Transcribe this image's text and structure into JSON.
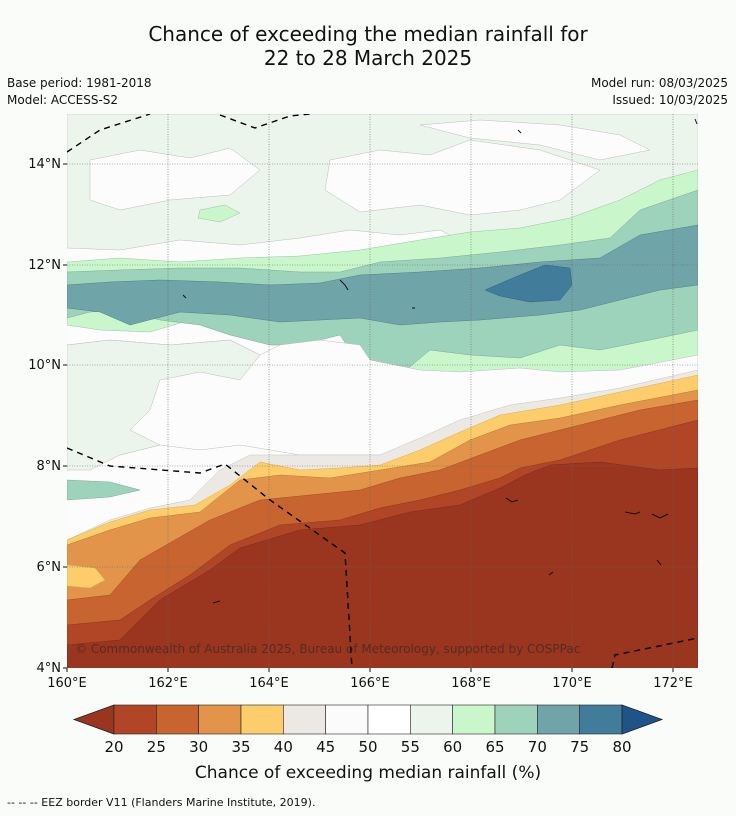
{
  "title": {
    "line1": "Chance of exceeding the median rainfall for",
    "line2": "22 to 28 March 2025"
  },
  "meta": {
    "base_period": "Base period: 1981-2018",
    "model": "Model: ACCESS-S2",
    "model_run": "Model run: 08/03/2025",
    "issued": "Issued: 10/03/2025"
  },
  "map": {
    "lon_range": [
      160,
      172.5
    ],
    "lat_range": [
      4,
      15
    ],
    "x_ticks": [
      "160°E",
      "162°E",
      "164°E",
      "166°E",
      "168°E",
      "170°E",
      "172°E"
    ],
    "y_ticks": [
      "4°N",
      "6°N",
      "8°N",
      "10°N",
      "12°N",
      "14°N"
    ],
    "grid": true,
    "copyright": "© Commonwealth of Australia 2025, Bureau of Meteorology, supported by COSPPac"
  },
  "colorbar": {
    "label": "Chance of exceeding median rainfall (%)",
    "ticks": [
      "20",
      "25",
      "30",
      "35",
      "40",
      "45",
      "50",
      "55",
      "60",
      "65",
      "70",
      "75",
      "80"
    ],
    "colors": [
      "#9a3520",
      "#b04626",
      "#c8642f",
      "#e1944a",
      "#fccd6a",
      "#ece9e5",
      "#fbfbfb",
      "#ffffff",
      "#ebf5eb",
      "#c9f7cb",
      "#9dd2bb",
      "#6fa4a8",
      "#427c9b",
      "#1e5489"
    ],
    "extend": "both"
  },
  "footer": "--  --  -- EEZ border V11 (Flanders Marine Institute, 2019)."
}
